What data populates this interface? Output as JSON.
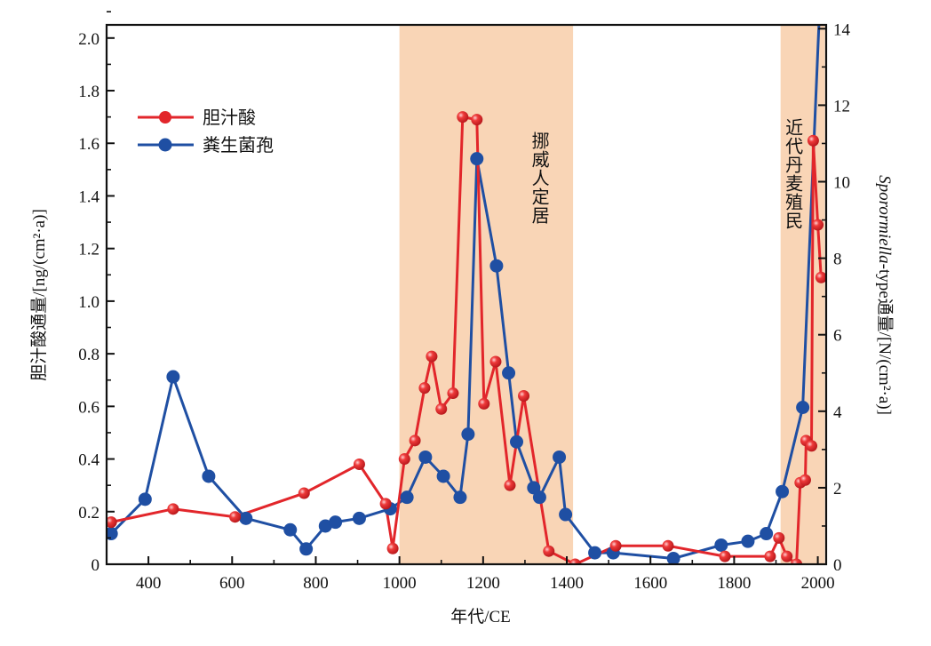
{
  "chart_data": {
    "type": "line",
    "xlabel": "年代/CE",
    "ylabel_left": "胆汁酸通量/[ng/(cm²·a)]",
    "ylabel_right_italic": "Sporormiella",
    "ylabel_right_rest": "-type通量/[N/(cm²·a)]",
    "xlim": [
      300,
      2020
    ],
    "ylim_left": [
      0,
      2.05
    ],
    "ylim_right": [
      0,
      14.1
    ],
    "xticks": [
      400,
      600,
      800,
      1000,
      1200,
      1400,
      1600,
      1800,
      2000
    ],
    "yticks_left": [
      "0",
      "0.2",
      "0.4",
      "0.6",
      "0.8",
      "1.0",
      "1.2",
      "1.4",
      "1.6",
      "1.8",
      "2.0"
    ],
    "yticks_right": [
      0,
      2,
      4,
      6,
      8,
      10,
      12,
      14
    ],
    "shaded_periods": [
      {
        "label": "挪威人定居",
        "start": 1000,
        "end": 1415
      },
      {
        "label": "近代丹麦殖民",
        "start": 1911,
        "end": 2017
      }
    ],
    "legend_position": "top-left",
    "series": [
      {
        "name": "胆汁酸",
        "axis": "left",
        "color": "#e2262b",
        "x": [
          311,
          459,
          607,
          772,
          904,
          967,
          984,
          1012,
          1037,
          1060,
          1077,
          1100,
          1128,
          1151,
          1185,
          1202,
          1230,
          1264,
          1297,
          1357,
          1420,
          1517,
          1642,
          1778,
          1886,
          1907,
          1926,
          1949,
          1958,
          1970,
          1972,
          1985,
          1989,
          2000,
          2008
        ],
        "y": [
          0.16,
          0.21,
          0.18,
          0.27,
          0.38,
          0.23,
          0.06,
          0.4,
          0.47,
          0.67,
          0.79,
          0.59,
          0.65,
          1.7,
          1.69,
          0.61,
          0.77,
          0.3,
          0.64,
          0.05,
          0.0,
          0.07,
          0.07,
          0.03,
          0.03,
          0.1,
          0.03,
          0.0,
          0.31,
          0.32,
          0.47,
          0.45,
          1.61,
          1.29,
          1.09
        ]
      },
      {
        "name": "粪生菌孢",
        "axis": "right",
        "color": "#1f4fa3",
        "x": [
          311,
          392,
          459,
          544,
          633,
          739,
          777,
          823,
          847,
          904,
          978,
          1018,
          1062,
          1105,
          1145,
          1164,
          1185,
          1232,
          1261,
          1280,
          1321,
          1335,
          1382,
          1397,
          1467,
          1511,
          1655,
          1769,
          1833,
          1877,
          1915,
          1964,
          2010
        ],
        "y": [
          0.8,
          1.7,
          4.9,
          2.3,
          1.2,
          0.9,
          0.4,
          1.0,
          1.1,
          1.2,
          1.45,
          1.75,
          2.8,
          2.3,
          1.75,
          3.4,
          10.6,
          7.8,
          5.0,
          3.2,
          2.0,
          1.75,
          2.8,
          1.3,
          0.3,
          0.3,
          0.15,
          0.5,
          0.6,
          0.8,
          1.9,
          4.1,
          16
        ]
      }
    ]
  }
}
